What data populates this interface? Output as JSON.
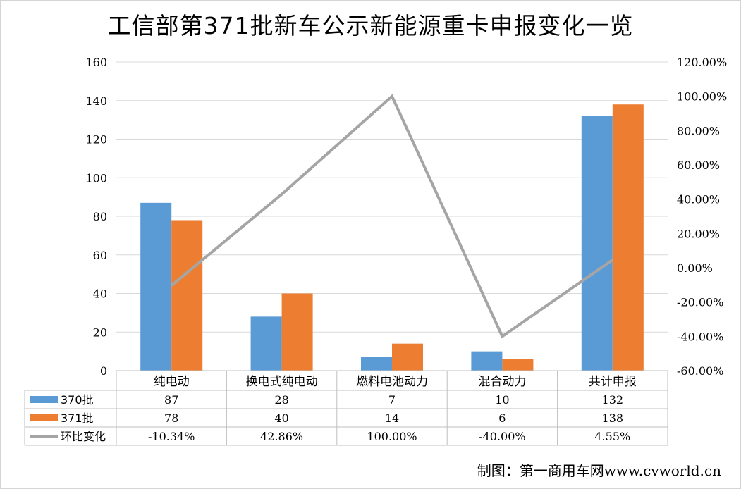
{
  "title": "工信部第371批新车公示新能源重卡申报变化一览",
  "credit": "制图：第一商用车网www.cvworld.cn",
  "colors": {
    "s370": "#5b9bd5",
    "s371": "#ed7d31",
    "change": "#a5a5a5",
    "grid": "#d9d9d9",
    "axis": "#bfbfbf"
  },
  "chart_data": {
    "type": "bar",
    "categories": [
      "纯电动",
      "换电式纯电动",
      "燃料电池动力",
      "混合动力",
      "共计申报"
    ],
    "series": [
      {
        "name": "370批",
        "type": "bar",
        "axis": "left",
        "values": [
          87,
          28,
          7,
          10,
          132
        ]
      },
      {
        "name": "371批",
        "type": "bar",
        "axis": "left",
        "values": [
          78,
          40,
          14,
          6,
          138
        ]
      },
      {
        "name": "环比变化",
        "type": "line",
        "axis": "right",
        "values": [
          -10.34,
          42.86,
          100.0,
          -40.0,
          4.55
        ]
      }
    ],
    "table_rows": [
      {
        "legend": "370批",
        "cells": [
          "87",
          "28",
          "7",
          "10",
          "132"
        ]
      },
      {
        "legend": "371批",
        "cells": [
          "78",
          "40",
          "14",
          "6",
          "138"
        ]
      },
      {
        "legend": "环比变化",
        "cells": [
          "-10.34%",
          "42.86%",
          "100.00%",
          "-40.00%",
          "4.55%"
        ]
      }
    ],
    "y_left": {
      "min": 0,
      "max": 160,
      "step": 20,
      "ticks": [
        "0",
        "20",
        "40",
        "60",
        "80",
        "100",
        "120",
        "140",
        "160"
      ]
    },
    "y_right": {
      "min": -60,
      "max": 120,
      "step": 20,
      "ticks": [
        "-60.00%",
        "-40.00%",
        "-20.00%",
        "0.00%",
        "20.00%",
        "40.00%",
        "60.00%",
        "80.00%",
        "100.00%",
        "120.00%"
      ]
    },
    "grid": true,
    "legend": "data-table"
  }
}
